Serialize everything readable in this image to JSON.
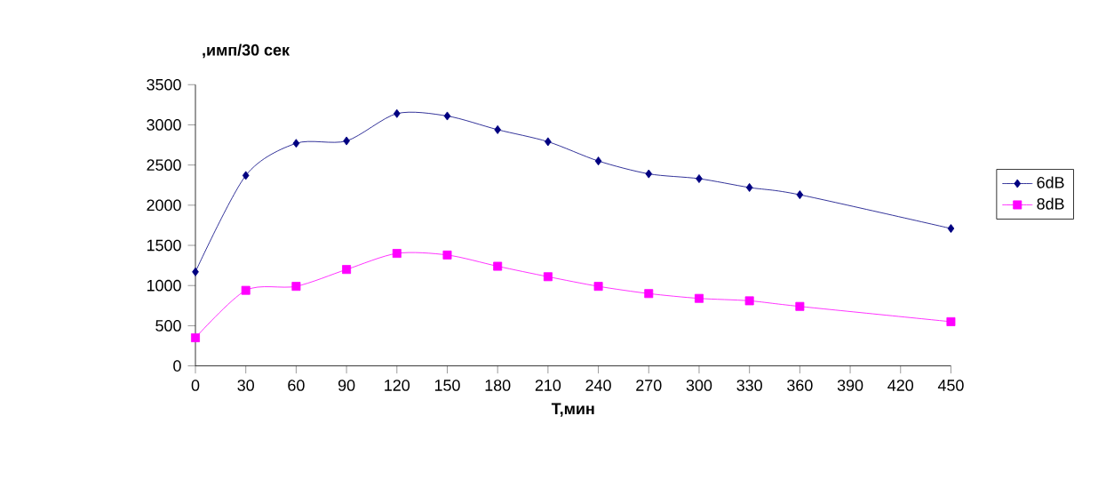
{
  "chart_data": {
    "type": "line",
    "xlabel": "T,мин",
    "ylabel": ",имп/30 сек",
    "x": [
      0,
      30,
      60,
      90,
      120,
      150,
      180,
      210,
      240,
      270,
      300,
      330,
      360,
      450
    ],
    "series": [
      {
        "name": "6dB",
        "color": "#000080",
        "marker": "diamond",
        "values": [
          1170,
          2370,
          2770,
          2800,
          3140,
          3110,
          2940,
          2790,
          2550,
          2390,
          2330,
          2220,
          2130,
          1710
        ]
      },
      {
        "name": "8dB",
        "color": "#ff00ff",
        "marker": "square",
        "values": [
          350,
          940,
          990,
          1200,
          1400,
          1380,
          1240,
          1110,
          990,
          900,
          840,
          810,
          740,
          550
        ]
      }
    ],
    "xlim": [
      0,
      450
    ],
    "xticks": [
      0,
      30,
      60,
      90,
      120,
      150,
      180,
      210,
      240,
      270,
      300,
      330,
      360,
      390,
      420,
      450
    ],
    "ylim": [
      0,
      3500
    ],
    "yticks": [
      0,
      500,
      1000,
      1500,
      2000,
      2500,
      3000,
      3500
    ],
    "grid": false,
    "legend": "right",
    "line_style": "solid"
  }
}
